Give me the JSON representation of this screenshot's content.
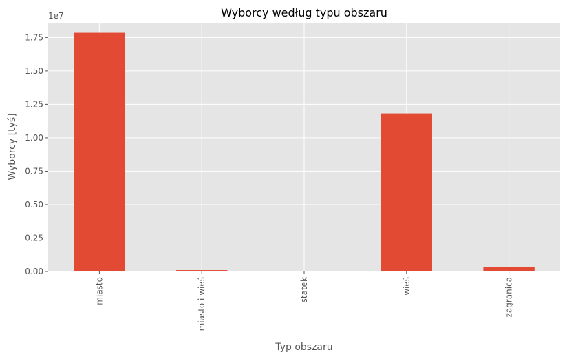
{
  "chart_data": {
    "type": "bar",
    "title": "Wyborcy według typu obszaru",
    "xlabel": "Typ obszaru",
    "ylabel": "Wyborcy [tyś]",
    "offset_label": "1e7",
    "categories": [
      "miasto",
      "miasto i wieś",
      "statek",
      "wieś",
      "zagranica"
    ],
    "values": [
      17850000,
      100000,
      0,
      11820000,
      330000
    ],
    "ylim": [
      0,
      18600000
    ],
    "yticks": [
      0,
      2500000,
      5000000,
      7500000,
      10000000,
      12500000,
      15000000,
      17500000
    ],
    "ytick_labels": [
      "0.00",
      "0.25",
      "0.50",
      "0.75",
      "1.00",
      "1.25",
      "1.50",
      "1.75"
    ],
    "grid": true,
    "bar_color": "#E24A33",
    "background_color": "#E5E5E5",
    "grid_color": "#FFFFFF"
  }
}
